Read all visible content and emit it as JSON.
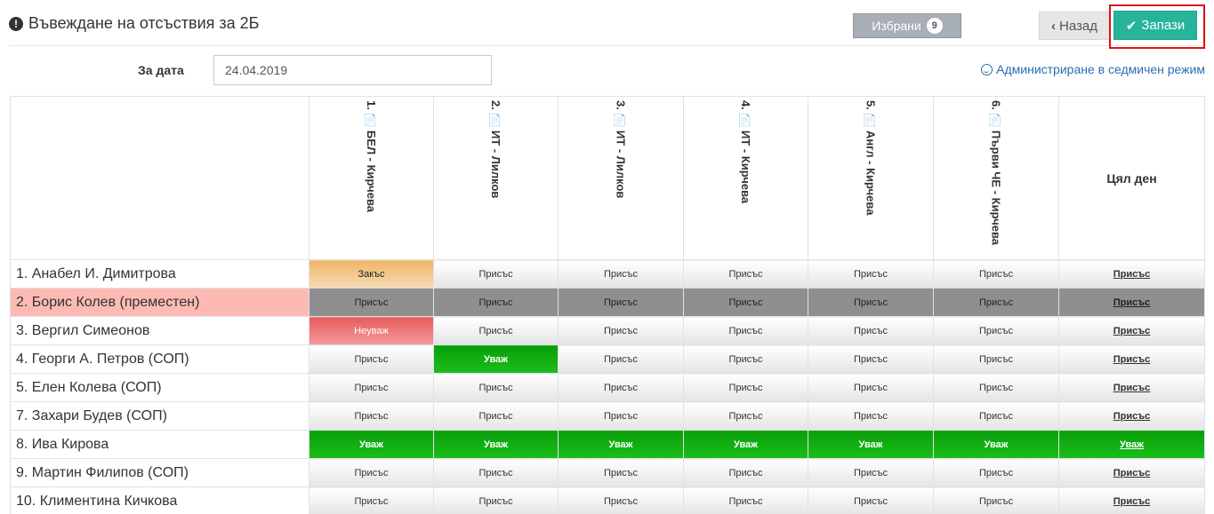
{
  "header": {
    "title": "Въвеждане на отсъствия за 2Б",
    "favorites_label": "Избрани",
    "favorites_count": "9",
    "back_label": "Назад",
    "save_label": "Запази"
  },
  "form": {
    "date_label": "За дата",
    "date_value": "24.04.2019",
    "weekly_link": "Администриране в седмичен режим"
  },
  "table": {
    "periods": [
      "1. 📄 БЕЛ - Кирчева",
      "2. 📄 ИТ - Лилков",
      "3. 📄 ИТ - Лилков",
      "4. 📄 ИТ - Кирчева",
      "5. 📄 Англ - Кирчева",
      "6. 📄 Първи ЧЕ - Кирчева"
    ],
    "whole_day_label": "Цял ден",
    "rows": [
      {
        "name": "1. Анабел И. Димитрова",
        "cells": [
          "Закъс",
          "Присъс",
          "Присъс",
          "Присъс",
          "Присъс",
          "Присъс",
          "Присъс"
        ]
      },
      {
        "name": "2. Борис Колев (преместен)",
        "cells": [
          "Присъс",
          "Присъс",
          "Присъс",
          "Присъс",
          "Присъс",
          "Присъс",
          "Присъс"
        ]
      },
      {
        "name": "3. Вергил Симеонов",
        "cells": [
          "Неуваж",
          "Присъс",
          "Присъс",
          "Присъс",
          "Присъс",
          "Присъс",
          "Присъс"
        ]
      },
      {
        "name": "4. Георги А. Петров (СОП)",
        "cells": [
          "Присъс",
          "Уваж",
          "Присъс",
          "Присъс",
          "Присъс",
          "Присъс",
          "Присъс"
        ]
      },
      {
        "name": "5. Елен Колева (СОП)",
        "cells": [
          "Присъс",
          "Присъс",
          "Присъс",
          "Присъс",
          "Присъс",
          "Присъс",
          "Присъс"
        ]
      },
      {
        "name": "7. Захари Будев (СОП)",
        "cells": [
          "Присъс",
          "Присъс",
          "Присъс",
          "Присъс",
          "Присъс",
          "Присъс",
          "Присъс"
        ]
      },
      {
        "name": "8. Ива Кирова",
        "cells": [
          "Уваж",
          "Уваж",
          "Уваж",
          "Уваж",
          "Уваж",
          "Уваж",
          "Уваж"
        ]
      },
      {
        "name": "9. Мартин Филипов (СОП)",
        "cells": [
          "Присъс",
          "Присъс",
          "Присъс",
          "Присъс",
          "Присъс",
          "Присъс",
          "Присъс"
        ]
      },
      {
        "name": "10. Климентина Кичкова",
        "cells": [
          "Присъс",
          "Присъс",
          "Присъс",
          "Присъс",
          "Присъс",
          "Присъс",
          "Присъс"
        ]
      }
    ]
  },
  "colors": {
    "save": "#26b59a",
    "excused": "#0a9e0a",
    "unexcused": "#e85c5c",
    "late": "#f0b466",
    "moved_row": "#fdbab3",
    "inactive_cell": "#8f8f8f",
    "highlight_frame": "#e01010"
  },
  "icons": {
    "title": "exclamation-circle-icon",
    "back": "chevron-left-icon",
    "save": "check-icon",
    "weekly": "smile-icon",
    "period": "document-icon"
  }
}
